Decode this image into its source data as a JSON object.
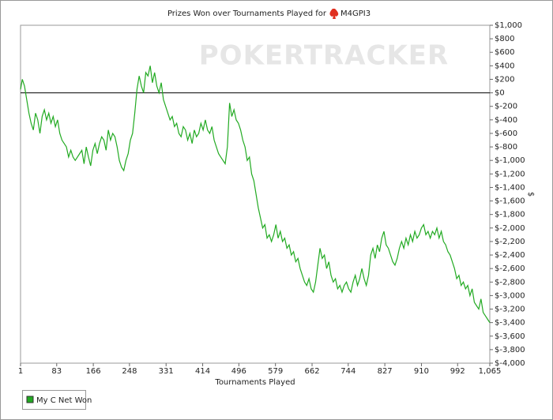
{
  "chart_data": {
    "type": "line",
    "title": "Prizes Won over Tournaments Played for",
    "player": "M4GPI3",
    "watermark": "POKERTRACKER",
    "xlabel": "Tournaments Played",
    "ylabel": "$",
    "xlim": [
      1,
      1065
    ],
    "ylim": [
      -4000,
      1000
    ],
    "xticks": [
      1,
      83,
      166,
      248,
      331,
      414,
      496,
      579,
      662,
      744,
      827,
      910,
      992,
      {
        "value": 1065,
        "label": "1,065"
      }
    ],
    "yticks": [
      {
        "value": 1000,
        "label": "$1,000"
      },
      {
        "value": 800,
        "label": "$800"
      },
      {
        "value": 600,
        "label": "$600"
      },
      {
        "value": 400,
        "label": "$400"
      },
      {
        "value": 200,
        "label": "$200"
      },
      {
        "value": 0,
        "label": "$0"
      },
      {
        "value": -200,
        "label": "$-200"
      },
      {
        "value": -400,
        "label": "$-400"
      },
      {
        "value": -600,
        "label": "$-600"
      },
      {
        "value": -800,
        "label": "$-800"
      },
      {
        "value": -1000,
        "label": "$-1,000"
      },
      {
        "value": -1200,
        "label": "$-1,200"
      },
      {
        "value": -1400,
        "label": "$-1,400"
      },
      {
        "value": -1600,
        "label": "$-1,600"
      },
      {
        "value": -1800,
        "label": "$-1,800"
      },
      {
        "value": -2000,
        "label": "$-2,000"
      },
      {
        "value": -2200,
        "label": "$-2,200"
      },
      {
        "value": -2400,
        "label": "$-2,400"
      },
      {
        "value": -2600,
        "label": "$-2,600"
      },
      {
        "value": -2800,
        "label": "$-2,800"
      },
      {
        "value": -3000,
        "label": "$-3,000"
      },
      {
        "value": -3200,
        "label": "$-3,200"
      },
      {
        "value": -3400,
        "label": "$-3,400"
      },
      {
        "value": -3600,
        "label": "$-3,600"
      },
      {
        "value": -3800,
        "label": "$-3,800"
      },
      {
        "value": -4000,
        "label": "$-4,000"
      }
    ],
    "x": [
      1,
      5,
      10,
      15,
      20,
      25,
      30,
      35,
      40,
      45,
      50,
      55,
      60,
      65,
      70,
      75,
      80,
      85,
      90,
      95,
      100,
      105,
      110,
      115,
      120,
      125,
      130,
      135,
      140,
      145,
      150,
      155,
      160,
      165,
      170,
      175,
      180,
      185,
      190,
      195,
      200,
      205,
      210,
      215,
      220,
      225,
      230,
      235,
      240,
      245,
      250,
      255,
      260,
      265,
      270,
      275,
      280,
      285,
      290,
      295,
      300,
      305,
      310,
      315,
      320,
      325,
      330,
      335,
      340,
      345,
      350,
      355,
      360,
      365,
      370,
      375,
      380,
      385,
      390,
      395,
      400,
      405,
      410,
      415,
      420,
      425,
      430,
      435,
      440,
      445,
      450,
      455,
      460,
      465,
      470,
      475,
      480,
      485,
      490,
      495,
      500,
      505,
      510,
      515,
      520,
      525,
      530,
      535,
      540,
      545,
      550,
      555,
      560,
      565,
      570,
      575,
      580,
      585,
      590,
      595,
      600,
      605,
      610,
      615,
      620,
      625,
      630,
      635,
      640,
      645,
      650,
      655,
      660,
      665,
      670,
      675,
      680,
      685,
      690,
      695,
      700,
      705,
      710,
      715,
      720,
      725,
      730,
      735,
      740,
      745,
      750,
      755,
      760,
      765,
      770,
      775,
      780,
      785,
      790,
      795,
      800,
      805,
      810,
      815,
      820,
      825,
      830,
      835,
      840,
      845,
      850,
      855,
      860,
      865,
      870,
      875,
      880,
      885,
      890,
      895,
      900,
      905,
      910,
      915,
      920,
      925,
      930,
      935,
      940,
      945,
      950,
      955,
      960,
      965,
      970,
      975,
      980,
      985,
      990,
      995,
      1000,
      1005,
      1010,
      1015,
      1020,
      1025,
      1030,
      1035,
      1040,
      1045,
      1050,
      1055,
      1060,
      1065
    ],
    "series": [
      {
        "name": "My C Net Won",
        "color": "#22aa22",
        "values": [
          50,
          200,
          100,
          -100,
          -300,
          -450,
          -550,
          -300,
          -400,
          -600,
          -350,
          -250,
          -400,
          -300,
          -450,
          -350,
          -500,
          -400,
          -600,
          -700,
          -750,
          -800,
          -950,
          -850,
          -950,
          -1000,
          -950,
          -900,
          -850,
          -1050,
          -800,
          -950,
          -1080,
          -850,
          -750,
          -900,
          -750,
          -650,
          -700,
          -850,
          -550,
          -700,
          -600,
          -650,
          -800,
          -1000,
          -1100,
          -1150,
          -1000,
          -900,
          -700,
          -600,
          -300,
          50,
          250,
          100,
          0,
          300,
          250,
          400,
          150,
          300,
          100,
          0,
          150,
          -100,
          -200,
          -300,
          -400,
          -350,
          -500,
          -450,
          -600,
          -650,
          -500,
          -550,
          -700,
          -600,
          -750,
          -550,
          -650,
          -600,
          -450,
          -550,
          -400,
          -550,
          -600,
          -500,
          -700,
          -800,
          -900,
          -950,
          -1000,
          -1050,
          -800,
          -150,
          -350,
          -250,
          -400,
          -450,
          -550,
          -700,
          -800,
          -1000,
          -950,
          -1200,
          -1300,
          -1500,
          -1700,
          -1850,
          -2000,
          -1950,
          -2150,
          -2100,
          -2200,
          -2100,
          -1950,
          -2150,
          -2050,
          -2200,
          -2150,
          -2300,
          -2250,
          -2400,
          -2350,
          -2500,
          -2450,
          -2600,
          -2700,
          -2800,
          -2850,
          -2750,
          -2900,
          -2950,
          -2800,
          -2550,
          -2300,
          -2450,
          -2400,
          -2600,
          -2500,
          -2700,
          -2800,
          -2750,
          -2900,
          -2850,
          -2950,
          -2850,
          -2800,
          -2900,
          -2950,
          -2800,
          -2700,
          -2850,
          -2750,
          -2600,
          -2750,
          -2850,
          -2700,
          -2400,
          -2300,
          -2450,
          -2250,
          -2350,
          -2150,
          -2050,
          -2250,
          -2300,
          -2400,
          -2500,
          -2550,
          -2450,
          -2300,
          -2200,
          -2300,
          -2150,
          -2250,
          -2100,
          -2200,
          -2050,
          -2150,
          -2100,
          -2000,
          -1950,
          -2100,
          -2050,
          -2150,
          -2050,
          -2100,
          -2000,
          -2150,
          -2050,
          -2200,
          -2250,
          -2350,
          -2400,
          -2500,
          -2600,
          -2750,
          -2700,
          -2850,
          -2800,
          -2900,
          -2850,
          -3000,
          -2900,
          -3100,
          -3150,
          -3200,
          -3050,
          -3250,
          -3300,
          -3350,
          -3400
        ]
      }
    ]
  }
}
